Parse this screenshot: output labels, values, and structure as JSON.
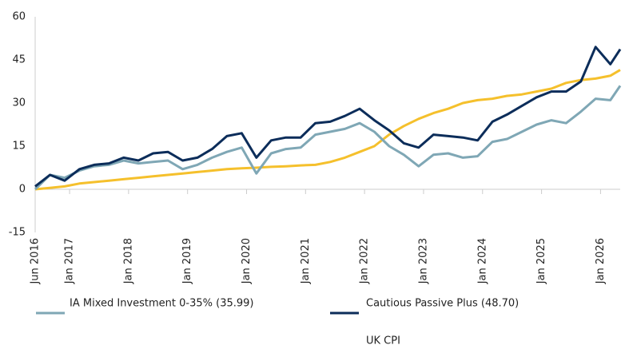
{
  "chart_data": {
    "type": "line",
    "x": [
      "2016-06",
      "2016-09",
      "2016-12",
      "2017-03",
      "2017-06",
      "2017-09",
      "2017-12",
      "2018-03",
      "2018-06",
      "2018-09",
      "2018-12",
      "2019-03",
      "2019-06",
      "2019-09",
      "2019-12",
      "2020-03",
      "2020-06",
      "2020-09",
      "2020-12",
      "2021-03",
      "2021-06",
      "2021-09",
      "2021-12",
      "2022-03",
      "2022-06",
      "2022-09",
      "2022-12",
      "2023-03",
      "2023-06",
      "2023-09",
      "2023-12",
      "2024-03",
      "2024-06",
      "2024-09",
      "2024-12",
      "2025-03",
      "2025-06",
      "2025-09",
      "2025-12",
      "2026-03",
      "2026-05"
    ],
    "series": [
      {
        "name": "IA Mixed Investment 0-35% (35.99)",
        "color": "#7fa7b5",
        "values": [
          0,
          5,
          4,
          6.5,
          8,
          8.5,
          10,
          9,
          9.5,
          10,
          7,
          8.5,
          11,
          13,
          14.5,
          5.5,
          12.5,
          14,
          14.5,
          19,
          20,
          21,
          23,
          20,
          15,
          12,
          8,
          12,
          12.5,
          11,
          11.5,
          16.5,
          17.5,
          20,
          22.5,
          24,
          23,
          27,
          31.5,
          31,
          36
        ]
      },
      {
        "name": "Cautious Passive Plus (48.70)",
        "color": "#0c2d5a",
        "values": [
          1,
          5,
          3,
          7,
          8.5,
          9,
          11,
          10,
          12.5,
          13,
          10,
          11,
          14,
          18.5,
          19.5,
          11,
          17,
          18,
          18,
          23,
          23.5,
          25.5,
          28,
          24,
          20.5,
          16,
          14.5,
          19,
          18.5,
          18,
          17,
          23.5,
          26,
          29,
          32,
          34,
          34,
          37.5,
          49.5,
          43.5,
          48.7
        ]
      },
      {
        "name": "UK CPI",
        "color": "#f5c02c",
        "values": [
          0,
          0.5,
          1,
          2,
          2.5,
          3,
          3.5,
          4,
          4.5,
          5,
          5.5,
          6,
          6.5,
          7,
          7.3,
          7.5,
          7.8,
          8,
          8.3,
          8.5,
          9.5,
          11,
          13,
          15,
          19,
          22,
          24.5,
          26.5,
          28,
          30,
          31,
          31.5,
          32.5,
          33,
          34,
          35,
          37,
          38,
          38.5,
          39.5,
          41.5
        ]
      }
    ],
    "xlim": [
      "2016-06",
      "2026-05"
    ],
    "xticks": [
      {
        "value": "2016-06",
        "label": "Jun 2016"
      },
      {
        "value": "2017-01",
        "label": "Jan 2017"
      },
      {
        "value": "2018-01",
        "label": "Jan 2018"
      },
      {
        "value": "2019-01",
        "label": "Jan 2019"
      },
      {
        "value": "2020-01",
        "label": "Jan 2020"
      },
      {
        "value": "2021-01",
        "label": "Jan 2021"
      },
      {
        "value": "2022-01",
        "label": "Jan 2022"
      },
      {
        "value": "2023-01",
        "label": "Jan 2023"
      },
      {
        "value": "2024-01",
        "label": "Jan 2024"
      },
      {
        "value": "2025-01",
        "label": "Jan 2025"
      },
      {
        "value": "2026-01",
        "label": "Jan 2026"
      }
    ],
    "ylim": [
      -15,
      60
    ],
    "yticks": [
      -15,
      0,
      15,
      30,
      45,
      60
    ]
  }
}
